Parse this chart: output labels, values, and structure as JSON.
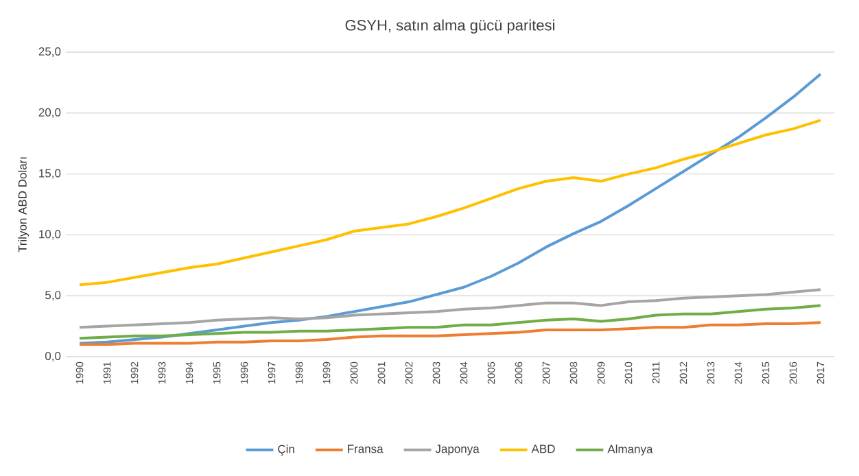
{
  "chart_data": {
    "type": "line",
    "title": "GSYH, satın alma gücü paritesi",
    "ylabel": "Trilyon ABD Doları",
    "categories": [
      "1990",
      "1991",
      "1992",
      "1993",
      "1994",
      "1995",
      "1996",
      "1997",
      "1998",
      "1999",
      "2000",
      "2001",
      "2002",
      "2003",
      "2004",
      "2005",
      "2006",
      "2007",
      "2008",
      "2009",
      "2010",
      "2011",
      "2012",
      "2013",
      "2014",
      "2015",
      "2016",
      "2017"
    ],
    "ylim": [
      0,
      25
    ],
    "yticks": [
      {
        "value": 0,
        "label": "0,0"
      },
      {
        "value": 5,
        "label": "5,0"
      },
      {
        "value": 10,
        "label": "10,0"
      },
      {
        "value": 15,
        "label": "15,0"
      },
      {
        "value": 20,
        "label": "20,0"
      },
      {
        "value": 25,
        "label": "25,0"
      }
    ],
    "grid": "y",
    "legend": "bottom",
    "marker": "none",
    "line_style": "solid",
    "series": [
      {
        "name": "Çin",
        "color": "#5b9bd5",
        "values": [
          1.1,
          1.2,
          1.4,
          1.6,
          1.9,
          2.2,
          2.5,
          2.8,
          3.0,
          3.3,
          3.7,
          4.1,
          4.5,
          5.1,
          5.7,
          6.6,
          7.7,
          9.0,
          10.1,
          11.1,
          12.4,
          13.8,
          15.2,
          16.6,
          18.0,
          19.6,
          21.3,
          23.2
        ]
      },
      {
        "name": "Fransa",
        "color": "#ed7d31",
        "values": [
          1.0,
          1.0,
          1.1,
          1.1,
          1.1,
          1.2,
          1.2,
          1.3,
          1.3,
          1.4,
          1.6,
          1.7,
          1.7,
          1.7,
          1.8,
          1.9,
          2.0,
          2.2,
          2.2,
          2.2,
          2.3,
          2.4,
          2.4,
          2.6,
          2.6,
          2.7,
          2.7,
          2.8
        ]
      },
      {
        "name": "Japonya",
        "color": "#a5a5a5",
        "values": [
          2.4,
          2.5,
          2.6,
          2.7,
          2.8,
          3.0,
          3.1,
          3.2,
          3.1,
          3.2,
          3.4,
          3.5,
          3.6,
          3.7,
          3.9,
          4.0,
          4.2,
          4.4,
          4.4,
          4.2,
          4.5,
          4.6,
          4.8,
          4.9,
          5.0,
          5.1,
          5.3,
          5.5
        ]
      },
      {
        "name": "ABD",
        "color": "#ffc000",
        "values": [
          5.9,
          6.1,
          6.5,
          6.9,
          7.3,
          7.6,
          8.1,
          8.6,
          9.1,
          9.6,
          10.3,
          10.6,
          10.9,
          11.5,
          12.2,
          13.0,
          13.8,
          14.4,
          14.7,
          14.4,
          15.0,
          15.5,
          16.2,
          16.8,
          17.5,
          18.2,
          18.7,
          19.4
        ]
      },
      {
        "name": "Almanya",
        "color": "#70ad47",
        "values": [
          1.5,
          1.6,
          1.7,
          1.7,
          1.8,
          1.9,
          2.0,
          2.0,
          2.1,
          2.1,
          2.2,
          2.3,
          2.4,
          2.4,
          2.6,
          2.6,
          2.8,
          3.0,
          3.1,
          2.9,
          3.1,
          3.4,
          3.5,
          3.5,
          3.7,
          3.9,
          4.0,
          4.2
        ]
      }
    ]
  }
}
